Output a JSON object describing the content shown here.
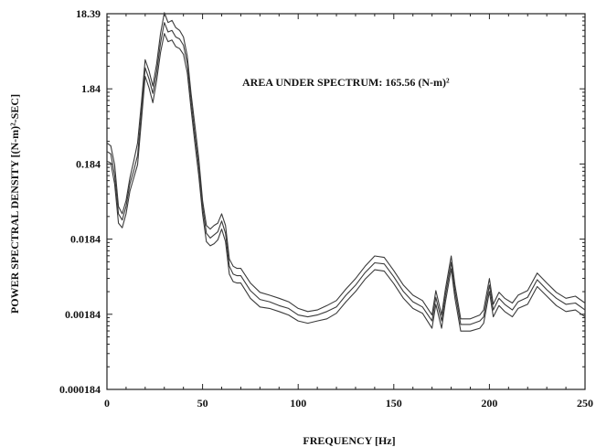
{
  "chart_data": {
    "type": "line",
    "title": "",
    "xlabel": "FREQUENCY [Hz]",
    "ylabel": "POWER SPECTRAL DENSITY [(N-m)²-SEC]",
    "xlim": [
      0,
      250
    ],
    "ylim": [
      0.000184,
      18.39
    ],
    "yscale": "log",
    "grid": false,
    "x_ticks": [
      0,
      50,
      100,
      150,
      200,
      250
    ],
    "x_tick_labels": [
      "0",
      "50",
      "100",
      "150",
      "200",
      "250"
    ],
    "y_ticks": [
      0.000184,
      0.00184,
      0.0184,
      0.184,
      1.84,
      18.39
    ],
    "y_tick_labels": [
      "0.000184",
      "0.00184",
      "0.0184",
      "0.184",
      "1.84",
      "18.39"
    ],
    "annotation": "AREA UNDER SPECTRUM:  165.56 (N-m)²",
    "line_color": "#3a3a3a",
    "x": [
      0,
      2,
      4,
      6,
      8,
      10,
      12,
      14,
      16,
      18,
      20,
      22,
      24,
      26,
      28,
      30,
      32,
      34,
      36,
      38,
      40,
      42,
      44,
      46,
      48,
      50,
      52,
      54,
      56,
      58,
      60,
      62,
      64,
      66,
      68,
      70,
      75,
      80,
      85,
      90,
      95,
      100,
      105,
      110,
      115,
      120,
      125,
      130,
      135,
      140,
      145,
      150,
      155,
      160,
      165,
      170,
      172,
      175,
      177,
      180,
      182,
      185,
      190,
      195,
      197,
      200,
      202,
      205,
      208,
      212,
      215,
      220,
      225,
      230,
      235,
      240,
      245,
      250
    ],
    "series": [
      {
        "values": [
          0.35,
          0.32,
          0.18,
          0.05,
          0.04,
          0.06,
          0.12,
          0.2,
          0.35,
          1.2,
          4.5,
          3.2,
          2.0,
          4.0,
          10.0,
          19.0,
          14.0,
          15.0,
          12.0,
          11.0,
          9.0,
          5.0,
          1.6,
          0.6,
          0.22,
          0.06,
          0.028,
          0.025,
          0.028,
          0.03,
          0.04,
          0.028,
          0.01,
          0.008,
          0.0075,
          0.0075,
          0.0048,
          0.0036,
          0.0033,
          0.003,
          0.0027,
          0.0022,
          0.002,
          0.0021,
          0.0024,
          0.0028,
          0.004,
          0.0055,
          0.008,
          0.011,
          0.0105,
          0.007,
          0.0045,
          0.0033,
          0.0028,
          0.0018,
          0.0038,
          0.0018,
          0.004,
          0.011,
          0.0045,
          0.0016,
          0.0016,
          0.0018,
          0.0021,
          0.0055,
          0.0025,
          0.0036,
          0.003,
          0.0026,
          0.0033,
          0.0038,
          0.0065,
          0.0048,
          0.0036,
          0.003,
          0.0032,
          0.0026
        ]
      },
      {
        "values": [
          0.27,
          0.25,
          0.13,
          0.04,
          0.033,
          0.05,
          0.1,
          0.15,
          0.24,
          0.9,
          3.5,
          2.5,
          1.6,
          3.1,
          7.5,
          14.0,
          10.5,
          11.0,
          9.0,
          8.5,
          7.0,
          4.0,
          1.3,
          0.45,
          0.17,
          0.05,
          0.022,
          0.019,
          0.021,
          0.023,
          0.032,
          0.022,
          0.008,
          0.0063,
          0.006,
          0.006,
          0.0038,
          0.0029,
          0.0027,
          0.0024,
          0.0022,
          0.0018,
          0.0017,
          0.0018,
          0.002,
          0.0023,
          0.0033,
          0.0045,
          0.0066,
          0.0089,
          0.0086,
          0.0058,
          0.0037,
          0.0027,
          0.0023,
          0.0015,
          0.0031,
          0.0015,
          0.0033,
          0.009,
          0.0037,
          0.00135,
          0.00135,
          0.0015,
          0.0017,
          0.0045,
          0.0021,
          0.003,
          0.0025,
          0.0021,
          0.0027,
          0.0031,
          0.0053,
          0.0039,
          0.003,
          0.0025,
          0.0026,
          0.0021
        ]
      },
      {
        "values": [
          0.2,
          0.19,
          0.1,
          0.03,
          0.026,
          0.04,
          0.08,
          0.12,
          0.18,
          0.7,
          2.7,
          1.9,
          1.2,
          2.4,
          5.6,
          10.0,
          7.8,
          8.2,
          6.7,
          6.3,
          5.3,
          3.0,
          1.0,
          0.35,
          0.13,
          0.04,
          0.017,
          0.015,
          0.016,
          0.018,
          0.025,
          0.017,
          0.0063,
          0.005,
          0.0048,
          0.0048,
          0.003,
          0.0023,
          0.0022,
          0.002,
          0.0018,
          0.0015,
          0.0014,
          0.0015,
          0.0016,
          0.0019,
          0.0027,
          0.0037,
          0.0054,
          0.0072,
          0.0069,
          0.0047,
          0.003,
          0.0022,
          0.0019,
          0.0012,
          0.0025,
          0.0012,
          0.0027,
          0.0074,
          0.003,
          0.0011,
          0.0011,
          0.0012,
          0.0014,
          0.0037,
          0.0017,
          0.0024,
          0.002,
          0.0017,
          0.0022,
          0.0025,
          0.0043,
          0.0032,
          0.0024,
          0.002,
          0.0021,
          0.0017
        ]
      }
    ]
  }
}
